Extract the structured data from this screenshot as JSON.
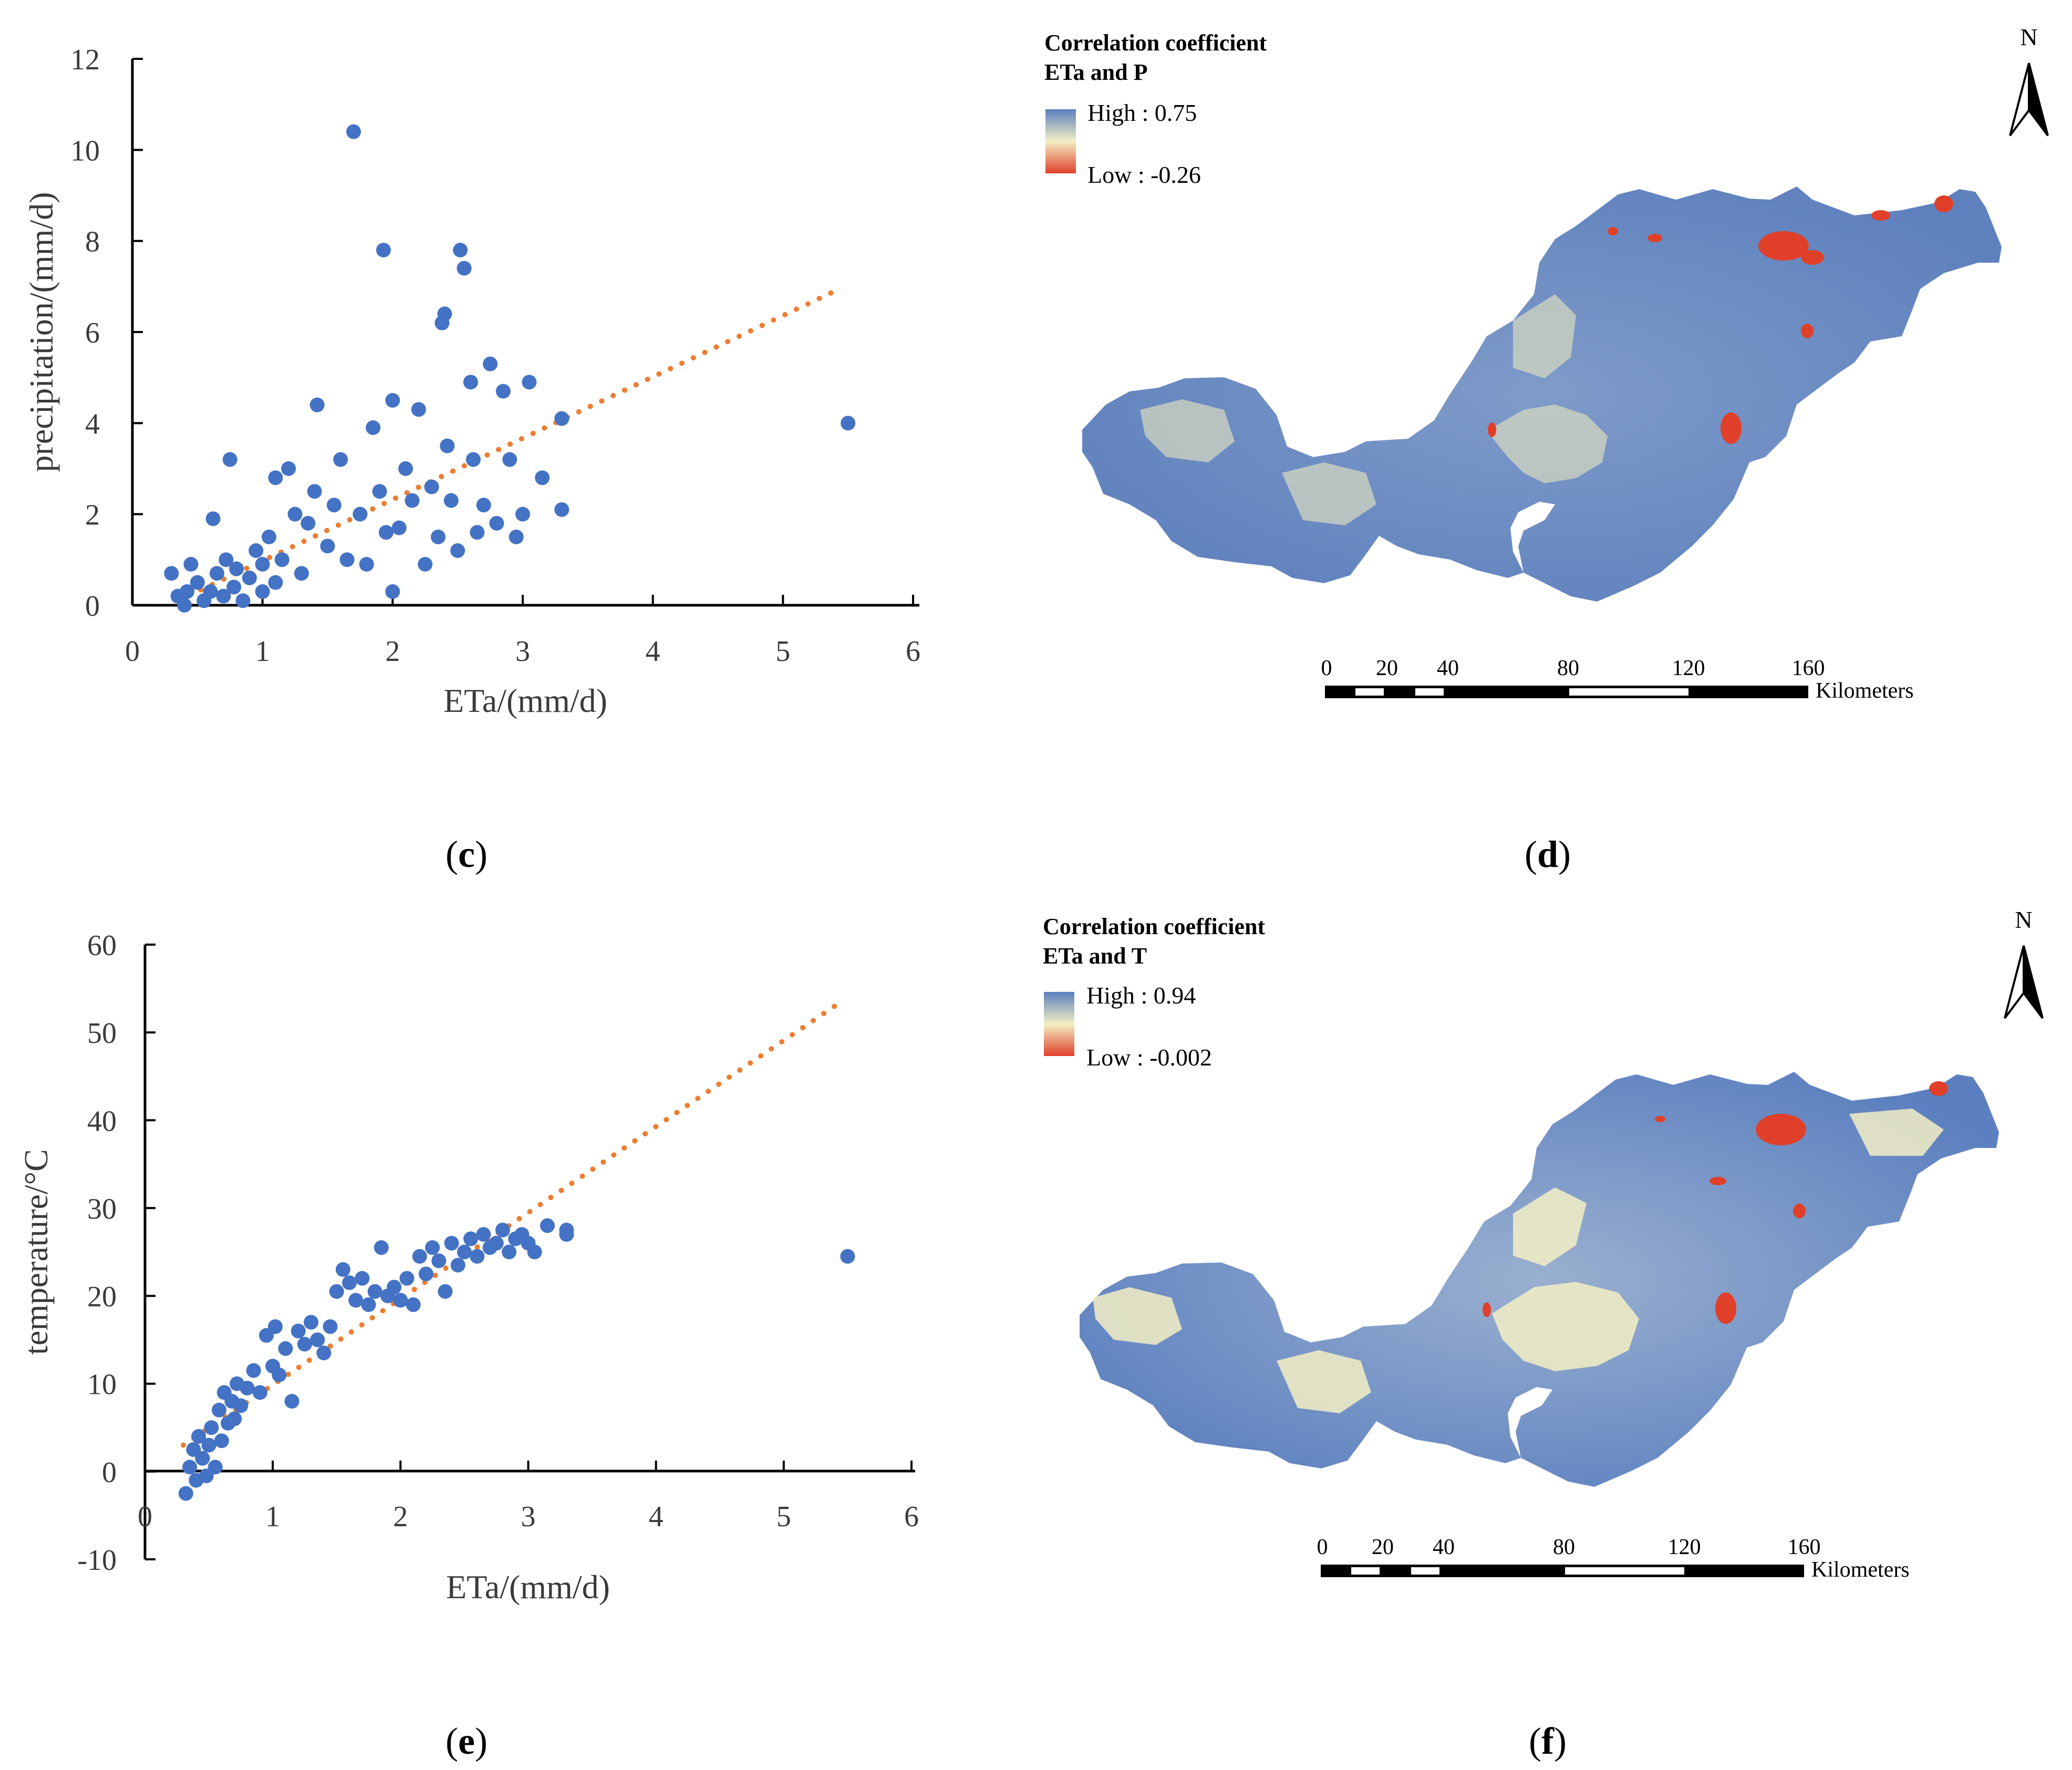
{
  "chart_data": [
    {
      "panel": "c",
      "type": "scatter",
      "xlabel": "ETa/(mm/d)",
      "ylabel": "precipitation/(mm/d)",
      "xlim": [
        0,
        6
      ],
      "ylim": [
        0,
        12
      ],
      "xticks": [
        "0",
        "1",
        "2",
        "3",
        "4",
        "5",
        "6"
      ],
      "yticks": [
        "0",
        "2",
        "4",
        "6",
        "8",
        "10",
        "12"
      ],
      "trendline": {
        "x": [
          0.35,
          5.4
        ],
        "y": [
          0.1,
          6.9
        ]
      },
      "points": [
        [
          0.3,
          0.7
        ],
        [
          0.35,
          0.2
        ],
        [
          0.4,
          0.0
        ],
        [
          0.42,
          0.3
        ],
        [
          0.45,
          0.9
        ],
        [
          0.5,
          0.5
        ],
        [
          0.55,
          0.1
        ],
        [
          0.6,
          0.3
        ],
        [
          0.62,
          1.9
        ],
        [
          0.65,
          0.7
        ],
        [
          0.7,
          0.2
        ],
        [
          0.72,
          1.0
        ],
        [
          0.75,
          3.2
        ],
        [
          0.78,
          0.4
        ],
        [
          0.8,
          0.8
        ],
        [
          0.85,
          0.1
        ],
        [
          0.9,
          0.6
        ],
        [
          0.95,
          1.2
        ],
        [
          1.0,
          0.3
        ],
        [
          1.0,
          0.9
        ],
        [
          1.05,
          1.5
        ],
        [
          1.1,
          2.8
        ],
        [
          1.1,
          0.5
        ],
        [
          1.15,
          1.0
        ],
        [
          1.2,
          3.0
        ],
        [
          1.25,
          2.0
        ],
        [
          1.3,
          0.7
        ],
        [
          1.35,
          1.8
        ],
        [
          1.4,
          2.5
        ],
        [
          1.42,
          4.4
        ],
        [
          1.5,
          1.3
        ],
        [
          1.55,
          2.2
        ],
        [
          1.6,
          3.2
        ],
        [
          1.65,
          1.0
        ],
        [
          1.7,
          10.4
        ],
        [
          1.75,
          2.0
        ],
        [
          1.8,
          0.9
        ],
        [
          1.85,
          3.9
        ],
        [
          1.9,
          2.5
        ],
        [
          1.93,
          7.8
        ],
        [
          1.95,
          1.6
        ],
        [
          2.0,
          4.5
        ],
        [
          2.0,
          0.3
        ],
        [
          2.05,
          1.7
        ],
        [
          2.1,
          3.0
        ],
        [
          2.15,
          2.3
        ],
        [
          2.2,
          4.3
        ],
        [
          2.25,
          0.9
        ],
        [
          2.3,
          2.6
        ],
        [
          2.35,
          1.5
        ],
        [
          2.38,
          6.2
        ],
        [
          2.4,
          6.4
        ],
        [
          2.42,
          3.5
        ],
        [
          2.45,
          2.3
        ],
        [
          2.5,
          1.2
        ],
        [
          2.52,
          7.8
        ],
        [
          2.55,
          7.4
        ],
        [
          2.6,
          4.9
        ],
        [
          2.62,
          3.2
        ],
        [
          2.65,
          1.6
        ],
        [
          2.7,
          2.2
        ],
        [
          2.75,
          5.3
        ],
        [
          2.8,
          1.8
        ],
        [
          2.85,
          4.7
        ],
        [
          2.9,
          3.2
        ],
        [
          2.95,
          1.5
        ],
        [
          3.0,
          2.0
        ],
        [
          3.05,
          4.9
        ],
        [
          3.15,
          2.8
        ],
        [
          3.3,
          2.1
        ],
        [
          3.3,
          4.1
        ],
        [
          5.5,
          4.0
        ]
      ]
    },
    {
      "panel": "e",
      "type": "scatter",
      "xlabel": "ETa/(mm/d)",
      "ylabel": "temperature/°C",
      "xlim": [
        0,
        6
      ],
      "ylim": [
        -10,
        60
      ],
      "xticks": [
        "0",
        "1",
        "2",
        "3",
        "4",
        "5",
        "6"
      ],
      "yticks": [
        "-10",
        "0",
        "10",
        "20",
        "30",
        "40",
        "50",
        "60"
      ],
      "trendline": {
        "x": [
          0.3,
          5.45
        ],
        "y": [
          3.0,
          53.5
        ]
      },
      "points": [
        [
          0.32,
          -2.5
        ],
        [
          0.35,
          0.5
        ],
        [
          0.38,
          2.5
        ],
        [
          0.4,
          -1.0
        ],
        [
          0.42,
          4.0
        ],
        [
          0.45,
          1.5
        ],
        [
          0.48,
          -0.5
        ],
        [
          0.5,
          3.0
        ],
        [
          0.52,
          5.0
        ],
        [
          0.55,
          0.5
        ],
        [
          0.58,
          7.0
        ],
        [
          0.6,
          3.5
        ],
        [
          0.62,
          9.0
        ],
        [
          0.65,
          5.5
        ],
        [
          0.68,
          8.0
        ],
        [
          0.7,
          6.0
        ],
        [
          0.72,
          10.0
        ],
        [
          0.75,
          7.5
        ],
        [
          0.8,
          9.5
        ],
        [
          0.85,
          11.5
        ],
        [
          0.9,
          9.0
        ],
        [
          0.95,
          15.5
        ],
        [
          1.0,
          12.0
        ],
        [
          1.02,
          16.5
        ],
        [
          1.05,
          11.0
        ],
        [
          1.1,
          14.0
        ],
        [
          1.15,
          8.0
        ],
        [
          1.2,
          16.0
        ],
        [
          1.25,
          14.5
        ],
        [
          1.3,
          17.0
        ],
        [
          1.35,
          15.0
        ],
        [
          1.4,
          13.5
        ],
        [
          1.45,
          16.5
        ],
        [
          1.5,
          20.5
        ],
        [
          1.55,
          23.0
        ],
        [
          1.6,
          21.5
        ],
        [
          1.65,
          19.5
        ],
        [
          1.7,
          22.0
        ],
        [
          1.75,
          19.0
        ],
        [
          1.8,
          20.5
        ],
        [
          1.85,
          25.5
        ],
        [
          1.9,
          20.0
        ],
        [
          1.95,
          21.0
        ],
        [
          2.0,
          19.5
        ],
        [
          2.05,
          22.0
        ],
        [
          2.1,
          19.0
        ],
        [
          2.15,
          24.5
        ],
        [
          2.2,
          22.5
        ],
        [
          2.25,
          25.5
        ],
        [
          2.3,
          24.0
        ],
        [
          2.35,
          20.5
        ],
        [
          2.4,
          26.0
        ],
        [
          2.45,
          23.5
        ],
        [
          2.5,
          25.0
        ],
        [
          2.55,
          26.5
        ],
        [
          2.6,
          24.5
        ],
        [
          2.65,
          27.0
        ],
        [
          2.7,
          25.5
        ],
        [
          2.75,
          26.0
        ],
        [
          2.8,
          27.5
        ],
        [
          2.85,
          25.0
        ],
        [
          2.9,
          26.5
        ],
        [
          2.95,
          27.0
        ],
        [
          3.0,
          26.0
        ],
        [
          3.05,
          25.0
        ],
        [
          3.15,
          28.0
        ],
        [
          3.3,
          27.5
        ],
        [
          3.3,
          27.0
        ],
        [
          5.5,
          24.5
        ]
      ]
    }
  ],
  "panels": {
    "c": "c",
    "d": "d",
    "e": "e",
    "f": "f"
  },
  "maps": [
    {
      "panel": "d",
      "legend_title_1": "Correlation coefficient",
      "legend_title_2": "ETa and P",
      "high_label": "High : 0.75",
      "low_label": "Low : -0.26",
      "north_label": "N",
      "scale_ticks": [
        "0",
        "20",
        "40",
        "80",
        "120",
        "160"
      ],
      "scale_unit": "Kilometers"
    },
    {
      "panel": "f",
      "legend_title_1": "Correlation coefficient",
      "legend_title_2": "ETa and T",
      "high_label": "High : 0.94",
      "low_label": "Low : -0.002",
      "north_label": "N",
      "scale_ticks": [
        "0",
        "20",
        "40",
        "80",
        "120",
        "160"
      ],
      "scale_unit": "Kilometers"
    }
  ],
  "colors": {
    "point": "#4472c4",
    "trend": "#ed7d31",
    "map_blue": "#5b7fbf",
    "map_yellow": "#f3efc4",
    "map_red": "#e0402a"
  }
}
